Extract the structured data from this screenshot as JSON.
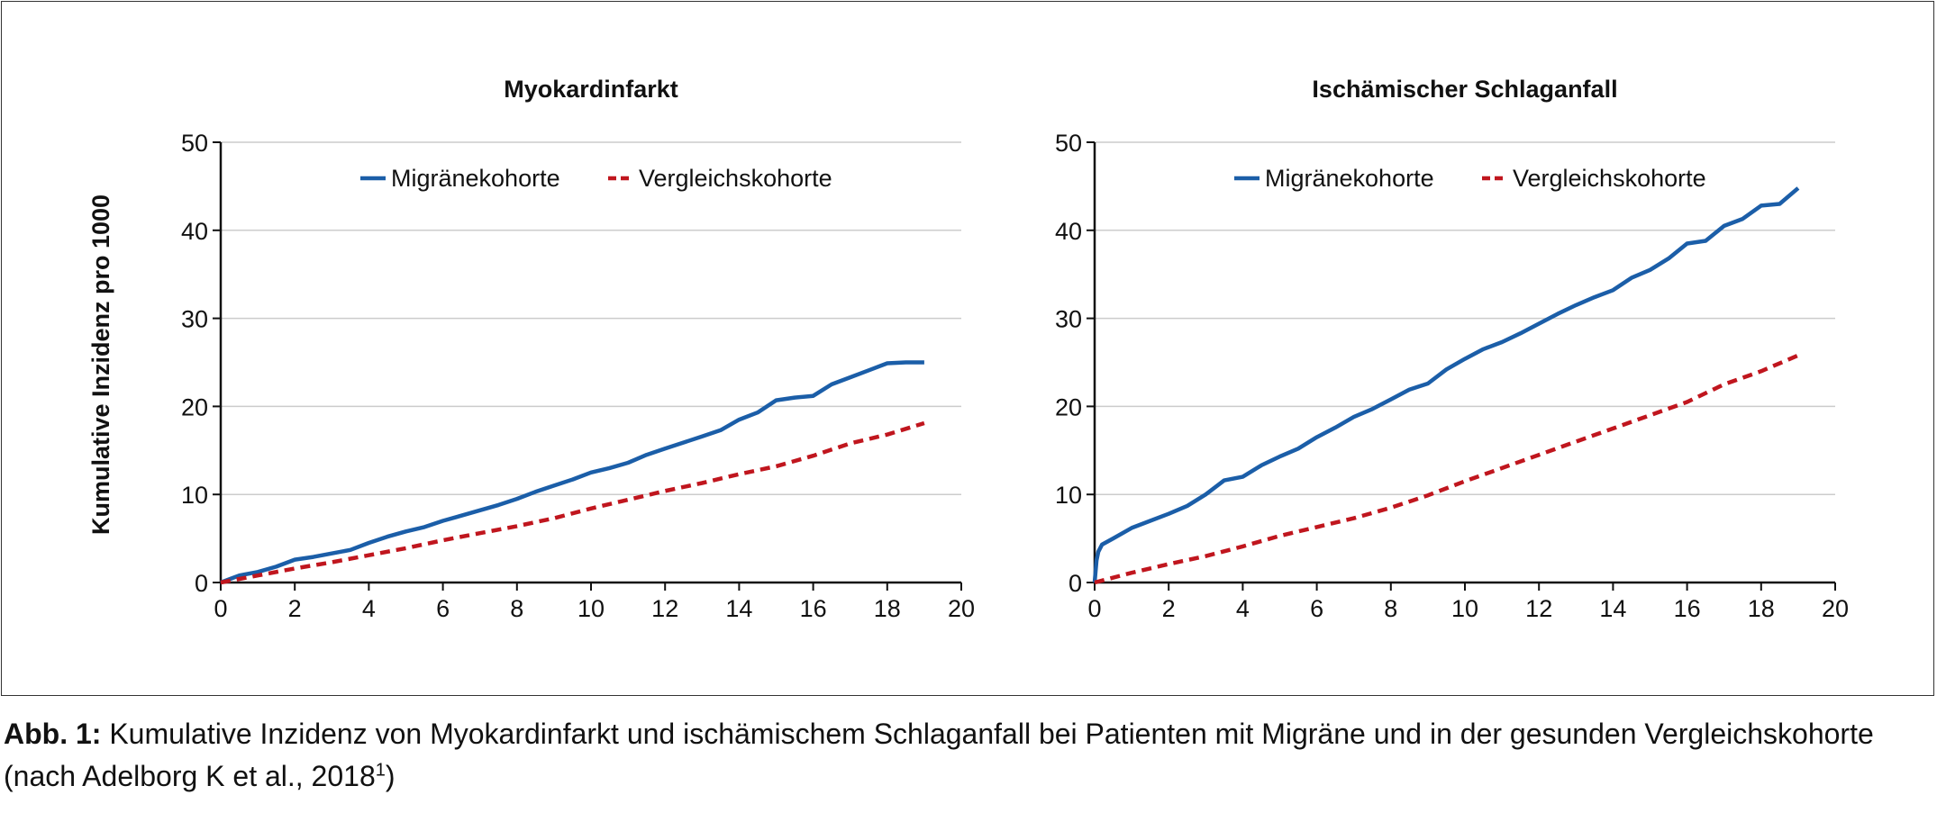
{
  "ylabel": "Kumulative Inzidenz pro 1000",
  "caption": {
    "label": "Abb. 1:",
    "text": "Kumulative Inzidenz von Myokardinfarkt und ischämischem Schlaganfall bei Patienten mit Migräne und in der gesunden Vergleichskohorte",
    "source": "(nach Adelborg K et al., 2018",
    "ref": "1",
    "close": ")"
  },
  "colors": {
    "migraine": "#1b5ea8",
    "comparison": "#c0161e",
    "grid": "#cccccc",
    "axis": "#111111"
  },
  "chart_data": [
    {
      "type": "line",
      "title": "Myokardinfarkt",
      "xlabel": "",
      "ylabel": "Kumulative Inzidenz pro 1000",
      "xlim": [
        0,
        20
      ],
      "ylim": [
        0,
        50
      ],
      "xticks": [
        0,
        2,
        4,
        6,
        8,
        10,
        12,
        14,
        16,
        18,
        20
      ],
      "yticks": [
        0,
        10,
        20,
        30,
        40,
        50
      ],
      "grid": true,
      "legend_position": "top",
      "series": [
        {
          "name": "Migränekohorte",
          "style": "solid",
          "x": [
            0,
            0.5,
            1,
            1.5,
            2,
            2.5,
            3,
            3.5,
            4,
            4.5,
            5,
            5.5,
            6,
            6.5,
            7,
            7.5,
            8,
            8.5,
            9,
            9.5,
            10,
            10.5,
            11,
            11.5,
            12,
            12.5,
            13,
            13.5,
            14,
            14.5,
            15,
            15.5,
            16,
            16.5,
            17,
            17.5,
            18,
            18.5,
            19
          ],
          "y": [
            0,
            0.8,
            1.2,
            1.8,
            2.6,
            2.9,
            3.3,
            3.7,
            4.5,
            5.2,
            5.8,
            6.3,
            7.0,
            7.6,
            8.2,
            8.8,
            9.5,
            10.3,
            11.0,
            11.7,
            12.5,
            13.0,
            13.6,
            14.5,
            15.2,
            15.9,
            16.6,
            17.3,
            18.5,
            19.3,
            20.7,
            21.0,
            21.2,
            22.5,
            23.3,
            24.1,
            24.9,
            25.0,
            25.0
          ]
        },
        {
          "name": "Vergleichskohorte",
          "style": "dashed",
          "x": [
            0,
            1,
            2,
            3,
            4,
            5,
            6,
            7,
            8,
            9,
            10,
            11,
            12,
            13,
            14,
            15,
            16,
            17,
            18,
            19
          ],
          "y": [
            0,
            0.8,
            1.6,
            2.3,
            3.1,
            3.9,
            4.8,
            5.6,
            6.4,
            7.3,
            8.4,
            9.4,
            10.4,
            11.3,
            12.3,
            13.2,
            14.4,
            15.8,
            16.8,
            18.1
          ]
        }
      ]
    },
    {
      "type": "line",
      "title": "Ischämischer Schlaganfall",
      "xlabel": "",
      "ylabel": "",
      "xlim": [
        0,
        20
      ],
      "ylim": [
        0,
        50
      ],
      "xticks": [
        0,
        2,
        4,
        6,
        8,
        10,
        12,
        14,
        16,
        18,
        20
      ],
      "yticks": [
        0,
        10,
        20,
        30,
        40,
        50
      ],
      "grid": true,
      "legend_position": "top",
      "series": [
        {
          "name": "Migränekohorte",
          "style": "solid",
          "x": [
            0,
            0.05,
            0.1,
            0.2,
            0.5,
            1,
            1.5,
            2,
            2.5,
            3,
            3.5,
            4,
            4.5,
            5,
            5.5,
            6,
            6.5,
            7,
            7.5,
            8,
            8.5,
            9,
            9.5,
            10,
            10.5,
            11,
            11.5,
            12,
            12.5,
            13,
            13.5,
            14,
            14.5,
            15,
            15.5,
            16,
            16.5,
            17,
            17.5,
            18,
            18.5,
            19
          ],
          "y": [
            0,
            2.5,
            3.5,
            4.3,
            5.0,
            6.2,
            7.0,
            7.8,
            8.7,
            10.0,
            11.6,
            12.0,
            13.3,
            14.3,
            15.2,
            16.5,
            17.6,
            18.8,
            19.7,
            20.8,
            21.9,
            22.6,
            24.2,
            25.4,
            26.5,
            27.3,
            28.3,
            29.4,
            30.5,
            31.5,
            32.4,
            33.2,
            34.6,
            35.5,
            36.8,
            38.5,
            38.8,
            40.5,
            41.3,
            42.8,
            43.0,
            44.8
          ]
        },
        {
          "name": "Vergleichskohorte",
          "style": "dashed",
          "x": [
            0,
            1,
            2,
            3,
            4,
            5,
            6,
            7,
            8,
            9,
            10,
            11,
            12,
            13,
            14,
            15,
            16,
            17,
            18,
            19
          ],
          "y": [
            0,
            1.1,
            2.1,
            3.0,
            4.1,
            5.3,
            6.3,
            7.3,
            8.5,
            9.9,
            11.5,
            13.0,
            14.5,
            16.0,
            17.5,
            19.0,
            20.5,
            22.5,
            24.0,
            25.8
          ]
        }
      ]
    }
  ]
}
